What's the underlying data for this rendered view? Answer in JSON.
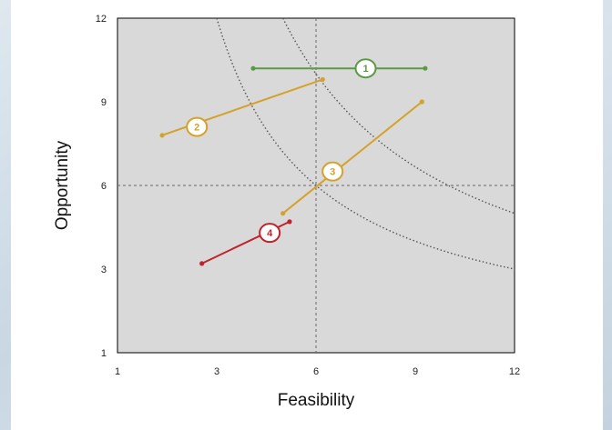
{
  "chart_data": {
    "type": "scatter",
    "xlabel": "Feasibility",
    "ylabel": "Opportunity",
    "xlim": [
      1,
      12
    ],
    "ylim": [
      1,
      12
    ],
    "x_ticks": [
      1,
      3,
      6,
      9,
      12
    ],
    "y_ticks": [
      1,
      3,
      6,
      9,
      12
    ],
    "x_tick_labels": [
      "1",
      "3",
      "6",
      "9",
      "12"
    ],
    "y_tick_labels": [
      "1",
      "3",
      "6",
      "9",
      "12"
    ],
    "background": "#d9d9d9",
    "reference_lines": {
      "x": 6,
      "y": 6
    },
    "indifference_curves": [
      {
        "k": 36,
        "color": "#555555"
      },
      {
        "k": 60,
        "color": "#555555"
      }
    ],
    "series": [
      {
        "label": "1",
        "color": "#5b9a45",
        "start": [
          4.1,
          10.2
        ],
        "end": [
          9.3,
          10.2
        ],
        "label_at": [
          7.5,
          10.2
        ]
      },
      {
        "label": "2",
        "color": "#d4a22a",
        "start": [
          1.9,
          7.8
        ],
        "end": [
          6.2,
          9.8
        ],
        "label_at": [
          2.6,
          8.1
        ]
      },
      {
        "label": "3",
        "color": "#d4a22a",
        "start": [
          5.0,
          5.0
        ],
        "end": [
          9.2,
          9.0
        ],
        "label_at": [
          6.5,
          6.5
        ]
      },
      {
        "label": "4",
        "color": "#c0232a",
        "start": [
          2.7,
          3.2
        ],
        "end": [
          5.2,
          4.7
        ],
        "label_at": [
          4.6,
          4.3
        ]
      }
    ]
  }
}
